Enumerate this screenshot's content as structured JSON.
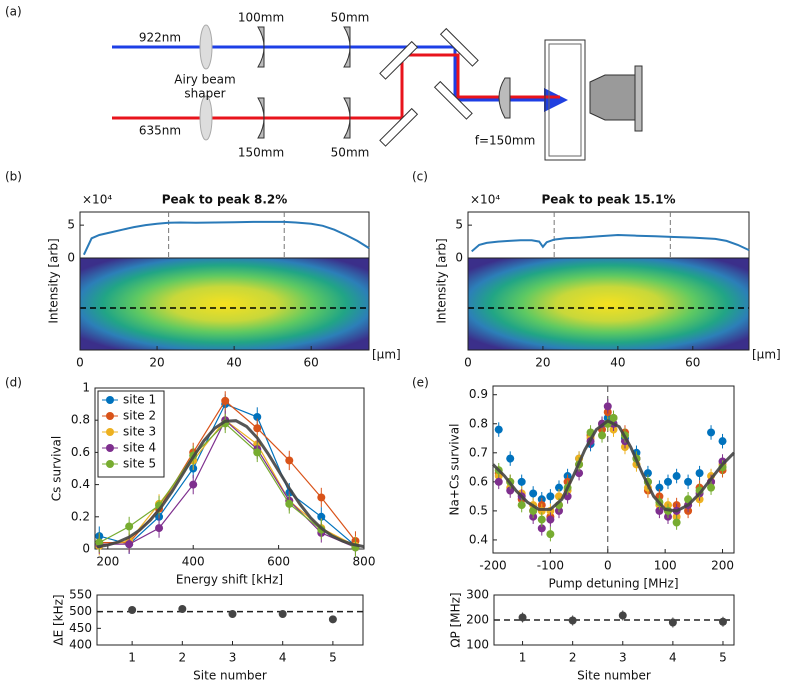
{
  "panel_labels": [
    "(a)",
    "(b)",
    "(c)",
    "(d)",
    "(e)"
  ],
  "diagram": {
    "beam_top": "922nm",
    "beam_bottom": "635nm",
    "lens_top_1": "100mm",
    "lens_top_2": "50mm",
    "lens_bottom_1": "150mm",
    "lens_bottom_2": "50mm",
    "shaper": [
      "Airy beam",
      "shaper"
    ],
    "focus_lens": "f=150mm"
  },
  "chart_data": [
    {
      "type": "line",
      "title": "Peak to peak 8.2%",
      "y_exponent": "×10⁴",
      "ylabel": "Intensity [arb]",
      "xunit": "[µm]",
      "color": "#2a7ab8",
      "x": [
        1,
        3,
        5,
        8,
        11,
        14,
        17,
        20,
        23,
        26,
        30,
        35,
        40,
        45,
        50,
        53,
        56,
        60,
        63,
        66,
        69,
        72,
        75
      ],
      "values": [
        0.5,
        3.0,
        3.5,
        3.9,
        4.3,
        4.7,
        5.0,
        5.2,
        5.35,
        5.4,
        5.35,
        5.4,
        5.45,
        5.5,
        5.5,
        5.5,
        5.4,
        5.2,
        4.9,
        4.3,
        3.5,
        2.6,
        1.5
      ],
      "vlines": [
        23,
        53
      ],
      "xlim": [
        0,
        75
      ],
      "ylim": [
        0,
        7
      ],
      "xticks": [
        0,
        20,
        40,
        60
      ],
      "yticks": [
        0,
        5
      ]
    },
    {
      "type": "line",
      "title": "Peak to peak 15.1%",
      "y_exponent": "×10⁴",
      "ylabel": "Intensity [arb]",
      "xunit": "[µm]",
      "color": "#2a7ab8",
      "x": [
        1,
        3,
        5,
        8,
        11,
        14,
        17,
        19,
        20,
        21,
        23,
        26,
        30,
        35,
        40,
        45,
        50,
        55,
        60,
        63,
        66,
        69,
        72,
        75
      ],
      "values": [
        1.0,
        2.0,
        2.3,
        2.5,
        2.6,
        2.7,
        2.7,
        2.5,
        1.7,
        2.4,
        2.8,
        3.0,
        3.1,
        3.3,
        3.5,
        3.4,
        3.3,
        3.2,
        3.1,
        3.0,
        2.9,
        2.6,
        2.0,
        1.2
      ],
      "vlines": [
        23,
        54
      ],
      "xlim": [
        0,
        75
      ],
      "ylim": [
        0,
        7
      ],
      "xticks": [
        0,
        20,
        40,
        60
      ],
      "yticks": [
        0,
        5
      ]
    },
    {
      "type": "scatter",
      "xlabel": "Energy shift [kHz]",
      "ylabel": "Cs survival",
      "connect": true,
      "legend": "upper left",
      "error": 0.06,
      "x": [
        180,
        250,
        320,
        400,
        475,
        550,
        625,
        700,
        780
      ],
      "series": [
        {
          "name": "site 1",
          "color": "#0072bd",
          "values": [
            0.08,
            0.03,
            0.2,
            0.5,
            0.9,
            0.82,
            0.35,
            0.2,
            0.02
          ]
        },
        {
          "name": "site 2",
          "color": "#d95319",
          "values": [
            0.04,
            0.04,
            0.25,
            0.6,
            0.92,
            0.75,
            0.55,
            0.32,
            0.05
          ]
        },
        {
          "name": "site 3",
          "color": "#edb120",
          "values": [
            0.02,
            0.05,
            0.28,
            0.55,
            0.8,
            0.65,
            0.3,
            0.13,
            0.02
          ]
        },
        {
          "name": "site 4",
          "color": "#7e2f8e",
          "values": [
            0.03,
            0.03,
            0.13,
            0.4,
            0.8,
            0.62,
            0.3,
            0.1,
            0.01
          ]
        },
        {
          "name": "site 5",
          "color": "#77ac30",
          "values": [
            0.04,
            0.14,
            0.27,
            0.58,
            0.78,
            0.6,
            0.28,
            0.12,
            0.01
          ]
        }
      ],
      "fit": {
        "color": "#444444",
        "x": [
          175,
          200,
          225,
          250,
          275,
          300,
          325,
          350,
          375,
          400,
          425,
          450,
          475,
          500,
          525,
          550,
          575,
          600,
          625,
          650,
          675,
          700,
          725,
          750,
          775,
          800
        ],
        "values": [
          0.013,
          0.025,
          0.044,
          0.074,
          0.118,
          0.18,
          0.26,
          0.356,
          0.463,
          0.572,
          0.672,
          0.749,
          0.794,
          0.797,
          0.761,
          0.69,
          0.593,
          0.485,
          0.377,
          0.278,
          0.194,
          0.129,
          0.082,
          0.049,
          0.028,
          0.015
        ]
      },
      "xlim": [
        170,
        800
      ],
      "ylim": [
        0,
        1
      ],
      "xticks": [
        200,
        400,
        600,
        800
      ],
      "yticks": [
        0,
        0.2,
        0.4,
        0.6,
        0.8,
        1
      ]
    },
    {
      "type": "scatter",
      "xlabel": "Site number",
      "ylabel": "ΔE [kHz]",
      "color": "#444444",
      "error": 8,
      "ref_y": 500,
      "x": [
        1,
        2,
        3,
        4,
        5
      ],
      "values": [
        505,
        508,
        493,
        493,
        477
      ],
      "xlim": [
        0.3,
        5.6
      ],
      "ylim": [
        400,
        550
      ],
      "xticks": [
        1,
        2,
        3,
        4,
        5
      ],
      "yticks": [
        400,
        450,
        500,
        550
      ]
    },
    {
      "type": "scatter",
      "xlabel": "Pump detuning [MHz]",
      "ylabel": "Na+Cs survival",
      "error": 0.025,
      "ref_x": 0,
      "x": [
        -190,
        -170,
        -150,
        -130,
        -115,
        -100,
        -85,
        -70,
        -50,
        -30,
        -10,
        0,
        10,
        30,
        50,
        70,
        90,
        105,
        120,
        140,
        160,
        180,
        200
      ],
      "series": [
        {
          "name": "site 1",
          "color": "#0072bd",
          "values": [
            0.78,
            0.68,
            0.6,
            0.56,
            0.54,
            0.55,
            0.58,
            0.62,
            0.68,
            0.73,
            0.8,
            0.82,
            0.8,
            0.75,
            0.7,
            0.63,
            0.58,
            0.6,
            0.62,
            0.6,
            0.63,
            0.77,
            0.74
          ]
        },
        {
          "name": "site 2",
          "color": "#d95319",
          "values": [
            0.63,
            0.6,
            0.54,
            0.5,
            0.52,
            0.48,
            0.52,
            0.6,
            0.66,
            0.76,
            0.78,
            0.84,
            0.82,
            0.77,
            0.68,
            0.57,
            0.55,
            0.5,
            0.52,
            0.5,
            0.58,
            0.6,
            0.64
          ]
        },
        {
          "name": "site 3",
          "color": "#edb120",
          "values": [
            0.62,
            0.58,
            0.56,
            0.52,
            0.5,
            0.5,
            0.55,
            0.57,
            0.68,
            0.75,
            0.8,
            0.8,
            0.78,
            0.72,
            0.66,
            0.58,
            0.52,
            0.52,
            0.48,
            0.52,
            0.54,
            0.62,
            0.66
          ]
        },
        {
          "name": "site 4",
          "color": "#7e2f8e",
          "values": [
            0.6,
            0.57,
            0.55,
            0.48,
            0.44,
            0.47,
            0.5,
            0.55,
            0.63,
            0.74,
            0.8,
            0.86,
            0.8,
            0.74,
            0.68,
            0.6,
            0.5,
            0.48,
            0.5,
            0.52,
            0.56,
            0.6,
            0.67
          ]
        },
        {
          "name": "site 5",
          "color": "#77ac30",
          "values": [
            0.64,
            0.6,
            0.52,
            0.5,
            0.47,
            0.42,
            0.52,
            0.58,
            0.66,
            0.77,
            0.76,
            0.8,
            0.82,
            0.76,
            0.68,
            0.6,
            0.53,
            0.5,
            0.46,
            0.54,
            0.57,
            0.58,
            0.65
          ]
        }
      ],
      "fit": {
        "color": "#444444",
        "x": [
          -200,
          -180,
          -160,
          -140,
          -120,
          -100,
          -80,
          -60,
          -40,
          -20,
          0,
          20,
          40,
          60,
          80,
          100,
          120,
          140,
          160,
          180,
          200,
          220
        ],
        "values": [
          0.66,
          0.62,
          0.57,
          0.53,
          0.505,
          0.505,
          0.54,
          0.62,
          0.71,
          0.78,
          0.81,
          0.79,
          0.72,
          0.63,
          0.55,
          0.505,
          0.5,
          0.52,
          0.56,
          0.61,
          0.66,
          0.7
        ]
      },
      "xlim": [
        -200,
        220
      ],
      "ylim": [
        0.355,
        0.93
      ],
      "xticks": [
        -200,
        -100,
        0,
        100,
        200
      ],
      "yticks": [
        0.4,
        0.5,
        0.6,
        0.7,
        0.8,
        0.9
      ]
    },
    {
      "type": "scatter",
      "xlabel": "Site number",
      "ylabel": "ΩP [MHz]",
      "color": "#444444",
      "error": 20,
      "ref_y": 200,
      "x": [
        1,
        2,
        3,
        4,
        5
      ],
      "values": [
        210,
        198,
        218,
        190,
        193
      ],
      "xlim": [
        0.43,
        5.22
      ],
      "ylim": [
        100,
        300
      ],
      "xticks": [
        1,
        2,
        3,
        4,
        5
      ],
      "yticks": [
        100,
        200,
        300
      ]
    }
  ]
}
